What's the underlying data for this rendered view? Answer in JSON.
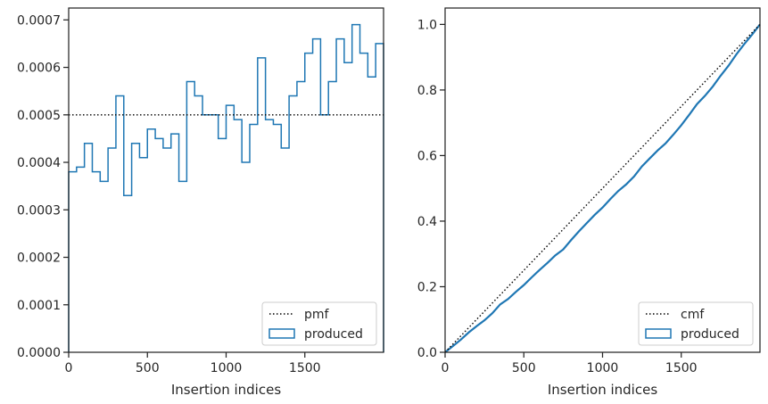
{
  "chart_data": [
    {
      "type": "histogram",
      "title": "",
      "xlabel": "Insertion indices",
      "ylabel": "",
      "xlim": [
        0,
        2000
      ],
      "ylim": [
        0,
        0.000725
      ],
      "x_ticks": [
        0,
        500,
        1000,
        1500
      ],
      "x_tick_labels": [
        "0",
        "500",
        "1000",
        "1500"
      ],
      "y_ticks": [
        0,
        0.0001,
        0.0002,
        0.0003,
        0.0004,
        0.0005,
        0.0006,
        0.0007
      ],
      "y_tick_labels": [
        "0.0000",
        "0.0001",
        "0.0002",
        "0.0003",
        "0.0004",
        "0.0005",
        "0.0006",
        "0.0007"
      ],
      "grid": false,
      "legend_position": "bottom-right",
      "legend": [
        {
          "label": "pmf",
          "style": "dotted-line",
          "color": "#000000"
        },
        {
          "label": "produced",
          "style": "step-box",
          "color": "#1f77b4"
        }
      ],
      "reference_line": {
        "label": "pmf",
        "y": 0.0005
      },
      "series": [
        {
          "name": "produced",
          "bin_width": 50,
          "bin_start": 0,
          "values": [
            0.00038,
            0.00039,
            0.00044,
            0.00038,
            0.00036,
            0.00043,
            0.00054,
            0.00033,
            0.00044,
            0.00041,
            0.00047,
            0.00045,
            0.00043,
            0.00046,
            0.00036,
            0.00057,
            0.00054,
            0.0005,
            0.0005,
            0.00045,
            0.00052,
            0.00049,
            0.0004,
            0.00048,
            0.00062,
            0.00049,
            0.00048,
            0.00043,
            0.00054,
            0.00057,
            0.00063,
            0.00066,
            0.0005,
            0.00057,
            0.00066,
            0.00061,
            0.00069,
            0.00063,
            0.00058,
            0.00065
          ]
        }
      ]
    },
    {
      "type": "line",
      "title": "",
      "xlabel": "Insertion indices",
      "ylabel": "",
      "xlim": [
        0,
        2000
      ],
      "ylim": [
        0,
        1.05
      ],
      "x_ticks": [
        0,
        500,
        1000,
        1500
      ],
      "x_tick_labels": [
        "0",
        "500",
        "1000",
        "1500"
      ],
      "y_ticks": [
        0,
        0.2,
        0.4,
        0.6,
        0.8,
        1.0
      ],
      "y_tick_labels": [
        "0.0",
        "0.2",
        "0.4",
        "0.6",
        "0.8",
        "1.0"
      ],
      "grid": false,
      "legend_position": "bottom-right",
      "legend": [
        {
          "label": "cmf",
          "style": "dotted-line",
          "color": "#000000"
        },
        {
          "label": "produced",
          "style": "step-box",
          "color": "#1f77b4"
        }
      ],
      "reference_line": {
        "label": "cmf",
        "x": [
          0,
          2000
        ],
        "y": [
          0,
          1.0
        ]
      },
      "series": [
        {
          "name": "produced",
          "x": [
            0,
            50,
            100,
            150,
            200,
            250,
            300,
            350,
            400,
            450,
            500,
            550,
            600,
            650,
            700,
            750,
            800,
            850,
            900,
            950,
            1000,
            1050,
            1100,
            1150,
            1200,
            1250,
            1300,
            1350,
            1400,
            1450,
            1500,
            1550,
            1600,
            1650,
            1700,
            1750,
            1800,
            1850,
            1900,
            1950,
            2000
          ],
          "y": [
            0,
            0.019,
            0.0385,
            0.0605,
            0.0795,
            0.0975,
            0.119,
            0.146,
            0.1625,
            0.1845,
            0.205,
            0.2285,
            0.251,
            0.2725,
            0.2955,
            0.3135,
            0.342,
            0.369,
            0.394,
            0.419,
            0.4415,
            0.4675,
            0.492,
            0.512,
            0.536,
            0.567,
            0.5915,
            0.6155,
            0.637,
            0.664,
            0.6925,
            0.724,
            0.757,
            0.782,
            0.8105,
            0.8435,
            0.874,
            0.9085,
            0.94,
            0.969,
            1.0
          ]
        }
      ]
    }
  ]
}
